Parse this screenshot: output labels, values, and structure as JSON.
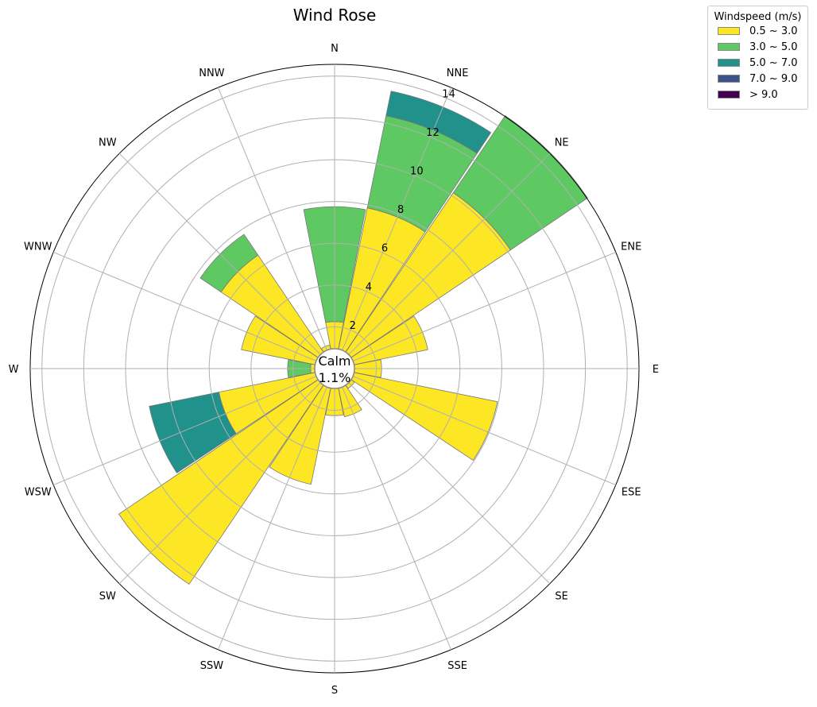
{
  "chart_data": {
    "type": "windrose",
    "title": "Wind Rose",
    "directions": [
      "N",
      "NNE",
      "NE",
      "ENE",
      "E",
      "ESE",
      "SE",
      "SSE",
      "S",
      "SSW",
      "SW",
      "WSW",
      "W",
      "WNW",
      "NW",
      "NNW"
    ],
    "radial_ticks": [
      2,
      4,
      6,
      8,
      10,
      12,
      14
    ],
    "radial_max": 14.6,
    "grid": true,
    "calm": {
      "label": "Calm",
      "value": "1.1%"
    },
    "legend": {
      "title": "Windspeed (m/s)",
      "placement": "top-right outside",
      "bins": [
        "0.5 ~ 3.0",
        "3.0 ~ 5.0",
        "5.0 ~ 7.0",
        "7.0 ~ 9.0",
        "> 9.0"
      ],
      "colors": [
        "#fde725",
        "#5ec962",
        "#21918c",
        "#3b528b",
        "#440154"
      ]
    },
    "series": [
      {
        "name": "0.5 ~ 3.0",
        "values": [
          1.3,
          6.9,
          9.2,
          3.6,
          1.3,
          7.0,
          0.2,
          1.4,
          1.3,
          4.7,
          11.5,
          4.7,
          0.2,
          3.6,
          5.6,
          0.2
        ]
      },
      {
        "name": "3.0 ~ 5.0",
        "values": [
          5.5,
          4.5,
          4.5,
          0,
          0,
          0,
          0,
          0,
          0,
          0,
          0,
          0,
          1.1,
          0,
          1.2,
          0
        ]
      },
      {
        "name": "5.0 ~ 7.0",
        "values": [
          0,
          1.2,
          0,
          0,
          0,
          0,
          0,
          0,
          0,
          0,
          0,
          3.4,
          0,
          0,
          0,
          0
        ]
      },
      {
        "name": "7.0 ~ 9.0",
        "values": [
          0,
          0,
          0,
          0,
          0,
          0,
          0,
          0,
          0,
          0,
          0,
          0,
          0,
          0,
          0,
          0
        ]
      },
      {
        "name": "> 9.0",
        "values": [
          0,
          0,
          0,
          0,
          0,
          0,
          0,
          0,
          0,
          0,
          0,
          0,
          0,
          0,
          0,
          0
        ]
      }
    ]
  }
}
